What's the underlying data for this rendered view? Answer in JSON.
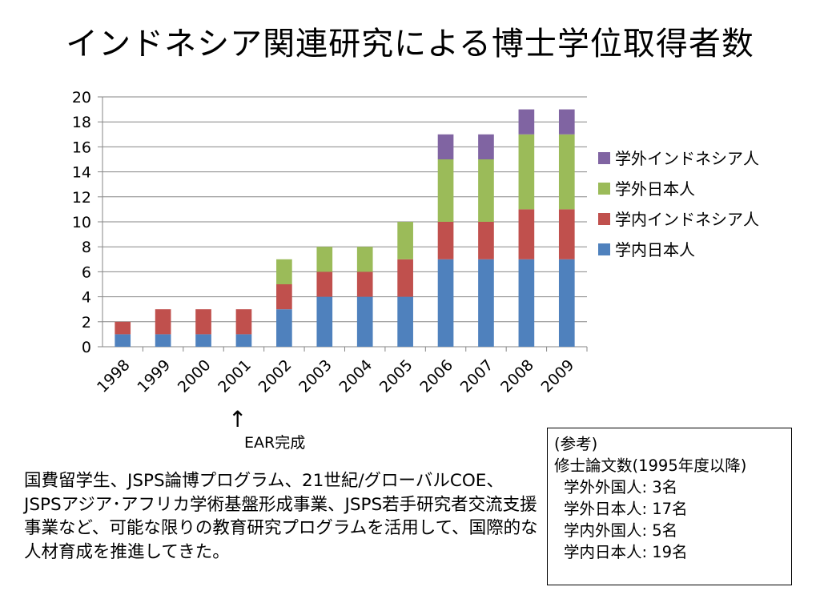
{
  "title": "インドネシア関連研究による博士学位取得者数",
  "chart_data": {
    "type": "bar",
    "stacked": true,
    "categories": [
      "1998",
      "1999",
      "2000",
      "2001",
      "2002",
      "2003",
      "2004",
      "2005",
      "2006",
      "2007",
      "2008",
      "2009"
    ],
    "series": [
      {
        "name": "学内日本人",
        "color": "#4F81BD",
        "values": [
          1,
          1,
          1,
          1,
          3,
          4,
          4,
          4,
          7,
          7,
          7,
          7
        ]
      },
      {
        "name": "学内インドネシア人",
        "color": "#C0504D",
        "values": [
          1,
          2,
          2,
          2,
          2,
          2,
          2,
          3,
          3,
          3,
          4,
          4
        ]
      },
      {
        "name": "学外日本人",
        "color": "#9BBB59",
        "values": [
          0,
          0,
          0,
          0,
          2,
          2,
          2,
          3,
          5,
          5,
          6,
          6
        ]
      },
      {
        "name": "学外インドネシア人",
        "color": "#8064A2",
        "values": [
          0,
          0,
          0,
          0,
          0,
          0,
          0,
          0,
          2,
          2,
          2,
          2
        ]
      }
    ],
    "yticks": [
      "0",
      "2",
      "4",
      "6",
      "8",
      "10",
      "12",
      "14",
      "16",
      "18",
      "20"
    ],
    "ylim": [
      0,
      20
    ],
    "grid": true,
    "legend_position": "right"
  },
  "annotation": {
    "arrow": "↑",
    "label": "EAR完成"
  },
  "body_text": "国費留学生、JSPS論博プログラム、21世紀/グローバルCOE、JSPSアジア･アフリカ学術基盤形成事業、JSPS若手研究者交流支援事業など、可能な限りの教育研究プログラムを活用して、国際的な人材育成を推進してきた。",
  "reference": {
    "heading": "(参考)",
    "subheading": "修士論文数(1995年度以降)",
    "items": [
      "学外外国人:   3名",
      "学外日本人: 17名",
      "学内外国人:   5名",
      "学内日本人: 19名"
    ]
  }
}
